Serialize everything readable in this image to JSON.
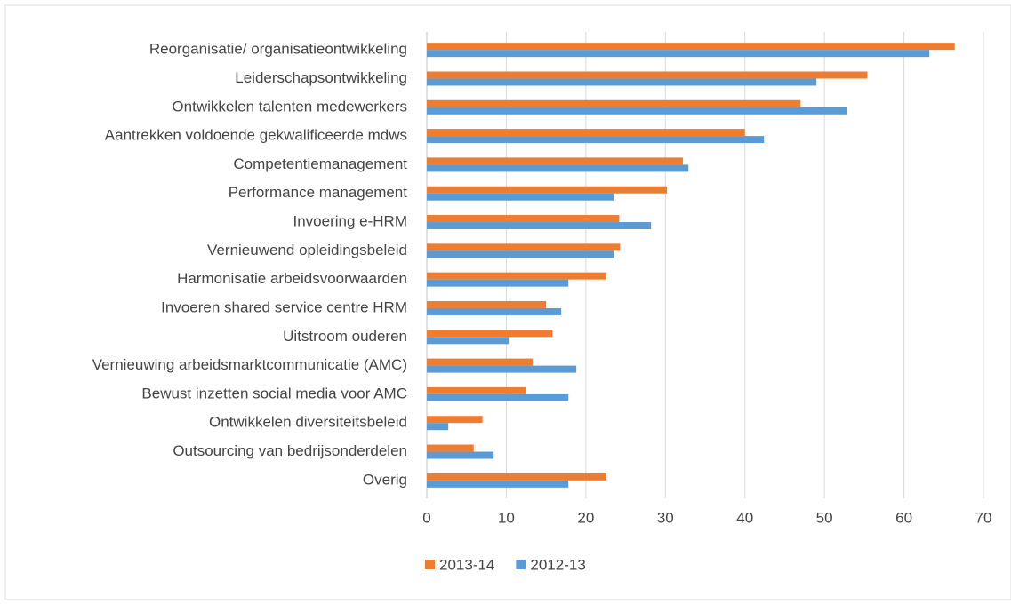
{
  "chart_data": {
    "type": "bar",
    "orientation": "horizontal",
    "categories": [
      "Reorganisatie/ organisatieontwikkeling",
      "Leiderschapsontwikkeling",
      "Ontwikkelen talenten medewerkers",
      "Aantrekken voldoende gekwalificeerde mdws",
      "Competentiemanagement",
      "Performance management",
      "Invoering e-HRM",
      "Vernieuwend opleidingsbeleid",
      "Harmonisatie arbeidsvoorwaarden",
      "Invoeren shared service centre HRM",
      "Uitstroom ouderen",
      "Vernieuwing arbeidsmarktcommunicatie (AMC)",
      "Bewust inzetten social media voor AMC",
      "Ontwikkelen diversiteitsbeleid",
      "Outsourcing van bedrijsonderdelen",
      "Overig"
    ],
    "series": [
      {
        "name": "2013-14",
        "color": "#ed7d31",
        "values": [
          66.4,
          55.4,
          47,
          40,
          32.2,
          30.2,
          24.2,
          24.3,
          22.6,
          15,
          15.8,
          13.3,
          12.5,
          7,
          5.9,
          22.6
        ]
      },
      {
        "name": "2012-13",
        "color": "#5b9bd5",
        "values": [
          63.2,
          49,
          52.8,
          42.4,
          32.9,
          23.5,
          28.2,
          23.5,
          17.8,
          16.9,
          10.3,
          18.8,
          17.8,
          2.7,
          8.4,
          17.8
        ]
      }
    ],
    "xlim": [
      0,
      70
    ],
    "xticks": [
      0,
      10,
      20,
      30,
      40,
      50,
      60,
      70
    ],
    "grid": true,
    "legend": "bottom"
  }
}
